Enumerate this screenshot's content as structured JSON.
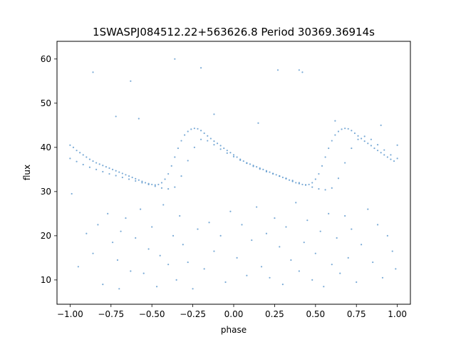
{
  "chart_data": {
    "type": "scatter",
    "title": "1SWASPJ084512.22+563626.8 Period 30369.36914s",
    "xlabel": "phase",
    "ylabel": "flux",
    "xlim": [
      -1.08,
      1.08
    ],
    "ylim": [
      4.5,
      64
    ],
    "xticks": [
      -1.0,
      -0.75,
      -0.5,
      -0.25,
      0.0,
      0.25,
      0.5,
      0.75,
      1.0
    ],
    "xtick_labels": [
      "−1.00",
      "−0.75",
      "−0.50",
      "−0.25",
      "0.00",
      "0.25",
      "0.50",
      "0.75",
      "1.00"
    ],
    "yticks": [
      10,
      20,
      30,
      40,
      50,
      60
    ],
    "ytick_labels": [
      "10",
      "20",
      "30",
      "40",
      "50",
      "60"
    ],
    "grid": false,
    "point_color": "#4f8fc8",
    "series": [
      {
        "x": [
          -1.0,
          -0.98,
          -0.96,
          -0.94,
          -0.92,
          -0.9,
          -0.88,
          -0.86,
          -0.84,
          -0.82,
          -0.8,
          -0.78,
          -0.76,
          -0.74,
          -0.72,
          -0.7,
          -0.68,
          -0.66,
          -0.64,
          -0.62,
          -0.6,
          -0.58,
          -0.56,
          -0.54,
          -0.52,
          -0.5,
          -0.48,
          -0.46,
          -0.44,
          -0.42,
          -0.4,
          -0.38,
          -0.36,
          -0.34,
          -0.32,
          -0.3,
          -0.28,
          -0.26,
          -0.24,
          -0.22,
          -0.2,
          -0.18,
          -0.16,
          -0.14,
          -0.12,
          -0.1,
          -0.08,
          -0.06,
          -0.04,
          -0.02,
          0.0,
          0.02,
          0.04,
          0.06,
          0.08,
          0.1,
          0.12,
          0.14,
          0.16,
          0.18,
          0.2,
          0.22,
          0.24,
          0.26,
          0.28,
          0.3,
          0.32,
          0.34,
          0.36,
          0.38,
          0.4,
          0.42,
          0.44,
          0.46,
          0.48,
          0.5,
          0.52,
          0.54,
          0.56,
          0.58,
          0.6,
          0.62,
          0.64,
          0.66,
          0.68,
          0.7,
          0.72,
          0.74,
          0.76,
          0.78,
          0.8,
          0.82,
          0.84,
          0.86,
          0.88,
          0.9,
          0.92,
          0.94,
          0.96,
          0.98,
          1.0
        ],
        "y": [
          40.5,
          40.0,
          39.3,
          38.8,
          38.3,
          37.8,
          37.3,
          36.9,
          36.5,
          36.2,
          35.9,
          35.6,
          35.3,
          35.0,
          34.7,
          34.4,
          34.1,
          33.8,
          33.5,
          33.2,
          32.9,
          32.6,
          32.3,
          32.0,
          31.8,
          31.6,
          31.5,
          31.6,
          32.0,
          32.8,
          34.0,
          35.8,
          37.8,
          39.8,
          41.5,
          42.8,
          43.6,
          44.1,
          44.3,
          44.2,
          43.8,
          43.2,
          42.6,
          42.0,
          41.4,
          40.9,
          40.4,
          39.8,
          39.3,
          38.8,
          38.3,
          37.8,
          37.3,
          36.9,
          36.5,
          36.2,
          35.9,
          35.6,
          35.3,
          35.0,
          34.7,
          34.4,
          34.1,
          33.8,
          33.5,
          33.2,
          32.9,
          32.6,
          32.3,
          32.0,
          31.8,
          31.6,
          31.5,
          31.6,
          32.0,
          32.8,
          34.0,
          35.8,
          37.8,
          39.8,
          41.5,
          42.8,
          43.6,
          44.1,
          44.3,
          44.2,
          43.8,
          43.2,
          42.6,
          42.0,
          41.4,
          40.9,
          40.4,
          39.8,
          39.3,
          38.8,
          38.3,
          37.8,
          37.3,
          36.9,
          40.5
        ]
      },
      {
        "x": [
          -1.0,
          -0.96,
          -0.92,
          -0.88,
          -0.84,
          -0.8,
          -0.76,
          -0.72,
          -0.68,
          -0.64,
          -0.6,
          -0.56,
          -0.52,
          -0.48,
          -0.44,
          -0.4,
          -0.36,
          -0.32,
          -0.28,
          -0.24,
          -0.2,
          -0.16,
          -0.12,
          -0.08,
          -0.04,
          0.0,
          0.04,
          0.08,
          0.12,
          0.16,
          0.2,
          0.24,
          0.28,
          0.32,
          0.36,
          0.4,
          0.44,
          0.48,
          0.52,
          0.56,
          0.6,
          0.64,
          0.68,
          0.72,
          0.76,
          0.8,
          0.84,
          0.88,
          0.92,
          0.96,
          1.0
        ],
        "y": [
          37.5,
          36.8,
          36.1,
          35.5,
          35.0,
          34.5,
          34.0,
          33.6,
          33.2,
          32.8,
          32.4,
          32.0,
          31.6,
          31.2,
          30.8,
          30.6,
          31.0,
          33.5,
          37.0,
          40.0,
          41.8,
          41.5,
          40.6,
          39.6,
          38.7,
          37.9,
          37.1,
          36.4,
          35.7,
          35.1,
          34.5,
          34.0,
          33.5,
          33.0,
          32.5,
          32.0,
          31.5,
          31.0,
          30.6,
          30.4,
          30.8,
          33.0,
          36.5,
          39.8,
          41.8,
          42.5,
          41.8,
          40.6,
          39.4,
          38.3,
          37.5
        ]
      },
      {
        "x": [
          -0.99,
          -0.95,
          -0.9,
          -0.86,
          -0.83,
          -0.8,
          -0.77,
          -0.74,
          -0.71,
          -0.7,
          -0.69,
          -0.66,
          -0.63,
          -0.6,
          -0.57,
          -0.55,
          -0.52,
          -0.5,
          -0.47,
          -0.45,
          -0.43,
          -0.4,
          -0.37,
          -0.35,
          -0.33,
          -0.31,
          -0.28,
          -0.25,
          -0.22,
          -0.18,
          -0.15,
          -0.12,
          -0.08,
          -0.05,
          -0.02,
          0.02,
          0.05,
          0.08,
          0.11,
          0.14,
          0.17,
          0.2,
          0.22,
          0.25,
          0.28,
          0.3,
          0.32,
          0.35,
          0.38,
          0.4,
          0.43,
          0.45,
          0.48,
          0.5,
          0.53,
          0.55,
          0.58,
          0.6,
          0.63,
          0.65,
          0.68,
          0.7,
          0.72,
          0.75,
          0.78,
          0.82,
          0.85,
          0.88,
          0.91,
          0.94,
          0.97,
          0.99,
          -0.86,
          -0.72,
          -0.58,
          -0.36,
          -0.12,
          0.15,
          0.27,
          0.42,
          0.62,
          0.9,
          -0.63,
          -0.2,
          0.4
        ],
        "y": [
          29.5,
          13.0,
          20.5,
          16.0,
          22.5,
          9.0,
          25.0,
          18.5,
          14.5,
          8.0,
          21.0,
          24.0,
          12.0,
          19.5,
          26.0,
          11.5,
          17.0,
          22.0,
          8.5,
          15.5,
          27.0,
          13.5,
          20.0,
          10.0,
          24.5,
          18.0,
          14.0,
          8.0,
          21.5,
          12.5,
          23.0,
          16.5,
          20.0,
          9.5,
          25.5,
          15.0,
          22.5,
          11.0,
          19.0,
          26.5,
          13.0,
          20.5,
          10.5,
          24.0,
          17.5,
          9.0,
          22.0,
          14.5,
          27.5,
          12.0,
          18.5,
          23.5,
          10.0,
          16.0,
          21.0,
          8.5,
          25.0,
          13.5,
          19.5,
          11.5,
          24.5,
          15.0,
          21.5,
          9.5,
          18.0,
          26.0,
          14.0,
          22.5,
          10.5,
          20.0,
          16.5,
          12.5,
          57.0,
          47.0,
          46.5,
          60.0,
          47.5,
          45.5,
          57.5,
          57.0,
          46.0,
          45.0,
          55.0,
          58.0,
          57.5
        ]
      }
    ]
  }
}
